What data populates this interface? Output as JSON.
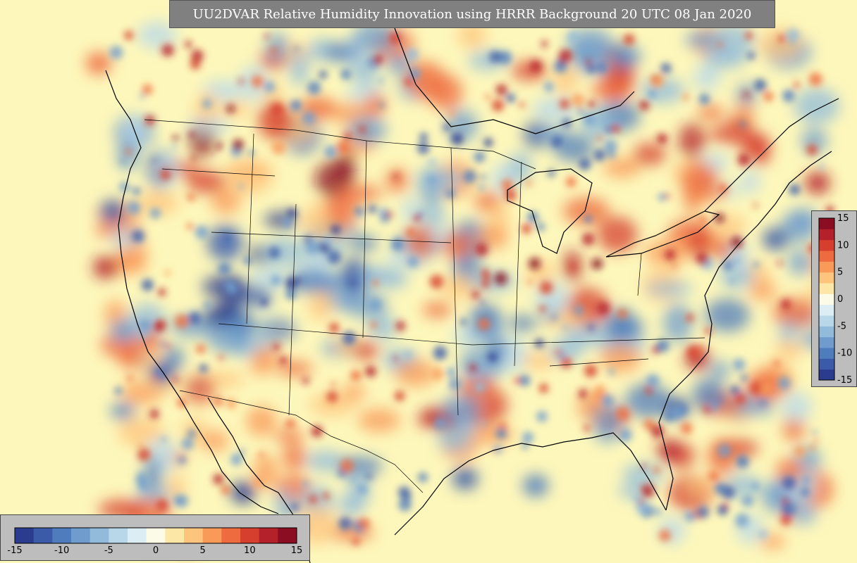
{
  "title": "UU2DVAR Relative Humidity Innovation using HRRR Background 20 UTC 08 Jan 2020",
  "colorbar": {
    "ticks": [
      "-15",
      "-10",
      "-5",
      "0",
      "5",
      "10",
      "15"
    ],
    "tick_values": [
      -15,
      -10,
      -5,
      0,
      5,
      10,
      15
    ],
    "range": [
      -15,
      15
    ],
    "colors": [
      "#2b3c8e",
      "#3b5aa7",
      "#4f7cbc",
      "#6f9ccc",
      "#92bbdb",
      "#b8d8e9",
      "#dcedf3",
      "#fbfbe8",
      "#fde7a7",
      "#fdc47d",
      "#f99a58",
      "#ee6a3f",
      "#d63f2d",
      "#b5212a",
      "#8a0d22"
    ]
  },
  "map": {
    "background_color": "#fdf7bb",
    "coast_color": "#000000"
  }
}
